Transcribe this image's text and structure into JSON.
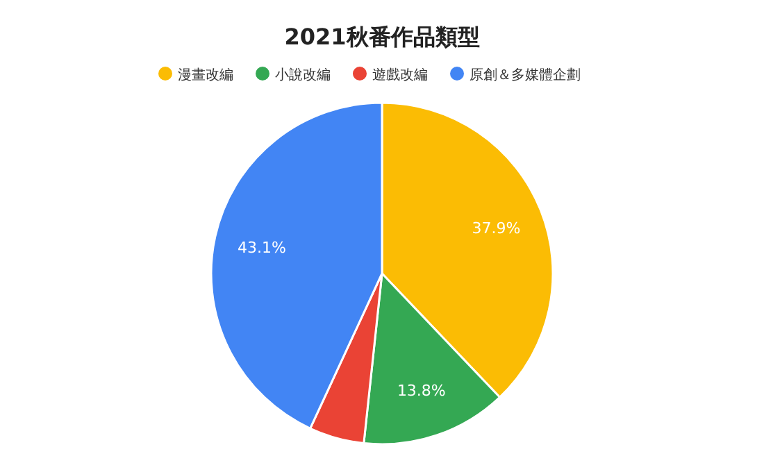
{
  "chart_data": {
    "type": "pie",
    "title": "2021秋番作品類型",
    "categories": [
      "漫畫改編",
      "小說改編",
      "遊戲改編",
      "原創＆多媒體企劃"
    ],
    "values": [
      37.9,
      13.8,
      5.2,
      43.1
    ],
    "colors": [
      "#fbbc04",
      "#34a853",
      "#ea4335",
      "#4285f4"
    ],
    "value_labels": [
      "37.9%",
      "13.8%",
      null,
      "43.1%"
    ],
    "legend": "top"
  }
}
